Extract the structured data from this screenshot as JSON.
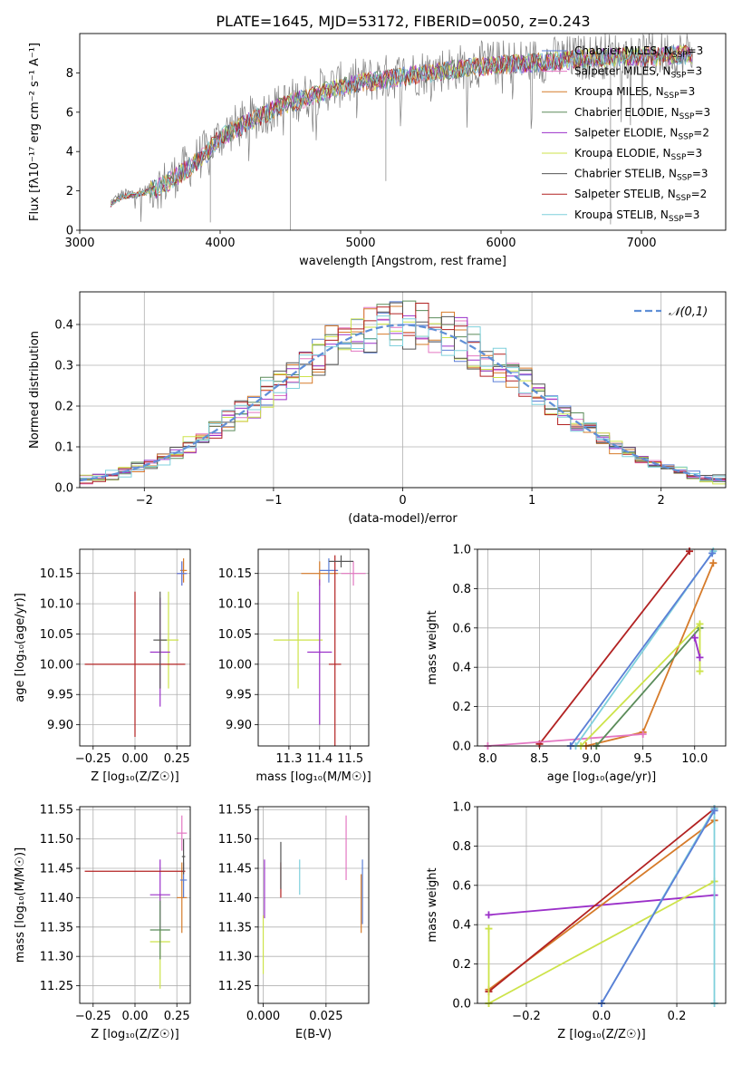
{
  "figure": {
    "title": "PLATE=1645, MJD=53172, FIBERID=0050, z=0.243",
    "sublabels": {
      "spec_y": "Flux [fλ10⁻¹⁷ erg cm⁻² s⁻¹ A⁻¹]",
      "age_axis": "age  [log₁₀(age/yr)]",
      "mass_axis": "mass [log₁₀(M/M☉)]",
      "z_axis": "Z [log₁₀(Z/Z☉)]"
    }
  },
  "legend_models": [
    {
      "label": "Chabrier MILES, N_SSP=3",
      "color": "#5b7fd6"
    },
    {
      "label": "Salpeter MILES, N_SSP=3",
      "color": "#e377c2"
    },
    {
      "label": "Kroupa MILES, N_SSP=3",
      "color": "#d67b2a"
    },
    {
      "label": "Chabrier ELODIE, N_SSP=3",
      "color": "#5b8c5a"
    },
    {
      "label": "Salpeter ELODIE, N_SSP=2",
      "color": "#9b30c9"
    },
    {
      "label": "Kroupa ELODIE, N_SSP=3",
      "color": "#cde34a"
    },
    {
      "label": "Chabrier STELIB, N_SSP=3",
      "color": "#555555"
    },
    {
      "label": "Salpeter STELIB, N_SSP=2",
      "color": "#b22222"
    },
    {
      "label": "Kroupa STELIB, N_SSP=3",
      "color": "#7fd0dc"
    }
  ],
  "chart_data": [
    {
      "id": "spectrum",
      "type": "line",
      "title": "PLATE=1645, MJD=53172, FIBERID=0050, z=0.243",
      "xlabel": "wavelength [Angstrom, rest frame]",
      "ylabel": "Flux [fλ10⁻¹⁷ erg cm⁻² s⁻¹ A⁻¹]",
      "xlim": [
        3000,
        7600
      ],
      "ylim": [
        0,
        10
      ],
      "xticks": [
        3000,
        4000,
        5000,
        6000,
        7000
      ],
      "yticks": [
        0,
        2,
        4,
        6,
        8
      ],
      "grid": false,
      "legend": "right",
      "data_trend_x": [
        3220,
        3300,
        3400,
        3500,
        3600,
        3700,
        3800,
        3900,
        4000,
        4200,
        4400,
        4600,
        4800,
        5000,
        5200,
        5400,
        5600,
        5800,
        6000,
        6200,
        6400,
        6600,
        6800,
        7000,
        7200,
        7350
      ],
      "data_trend_y": [
        1.4,
        1.8,
        1.9,
        2.1,
        2.4,
        2.9,
        3.4,
        4.0,
        4.8,
        5.6,
        6.3,
        6.8,
        7.3,
        7.6,
        7.8,
        8.0,
        8.2,
        8.4,
        8.5,
        8.6,
        8.7,
        8.8,
        8.9,
        8.9,
        9.0,
        9.0
      ]
    },
    {
      "id": "residuals",
      "type": "line",
      "xlabel": "(data-model)/error",
      "ylabel": "Normed distribution",
      "xlim": [
        -2.5,
        2.5
      ],
      "ylim": [
        0,
        0.48
      ],
      "xticks": [
        -2,
        -1,
        0,
        1,
        2
      ],
      "yticks": [
        0.0,
        0.1,
        0.2,
        0.3,
        0.4
      ],
      "grid": true,
      "legend": "top-right",
      "legend_label": "𝒩(0,1)",
      "gaussian": {
        "mu": 0,
        "sigma": 1
      }
    },
    {
      "id": "age_vs_Z",
      "type": "scatter",
      "xlabel": "Z [log₁₀(Z/Z☉)]",
      "ylabel": "age  [log₁₀(age/yr)]",
      "xlim": [
        -0.33,
        0.33
      ],
      "ylim": [
        9.865,
        10.19
      ],
      "xticks": [
        -0.25,
        0.0,
        0.25
      ],
      "yticks": [
        9.9,
        9.95,
        10.0,
        10.05,
        10.1,
        10.15
      ],
      "grid": true,
      "points": [
        {
          "x": 0.28,
          "y": 10.15,
          "xerr": 0.03,
          "yerr": 0.02,
          "color": "#e377c2"
        },
        {
          "x": 0.29,
          "y": 10.155,
          "xerr": 0.02,
          "yerr": 0.02,
          "color": "#d67b2a"
        },
        {
          "x": 0.28,
          "y": 10.15,
          "xerr": 0.03,
          "yerr": 0.02,
          "color": "#5b7fd6"
        },
        {
          "x": 0.2,
          "y": 10.04,
          "xerr": 0.06,
          "yerr": 0.08,
          "color": "#cde34a"
        },
        {
          "x": 0.15,
          "y": 10.02,
          "xerr": 0.06,
          "yerr": 0.09,
          "color": "#9b30c9"
        },
        {
          "x": 0.0,
          "y": 10.0,
          "xerr": 0.3,
          "yerr": 0.12,
          "color": "#b22222"
        },
        {
          "x": 0.15,
          "y": 10.04,
          "xerr": 0.04,
          "yerr": 0.08,
          "color": "#555555"
        }
      ]
    },
    {
      "id": "age_vs_mass",
      "type": "scatter",
      "xlabel": "mass [log₁₀(M/M☉)]",
      "ylabel": "",
      "xlim": [
        11.2,
        11.56
      ],
      "ylim": [
        9.865,
        10.19
      ],
      "xticks": [
        11.3,
        11.4,
        11.5
      ],
      "yticks": [
        9.9,
        9.95,
        10.0,
        10.05,
        10.1,
        10.15
      ],
      "grid": true,
      "points": [
        {
          "x": 11.51,
          "y": 10.15,
          "xerr": 0.04,
          "yerr": 0.02,
          "color": "#e377c2"
        },
        {
          "x": 11.4,
          "y": 10.15,
          "xerr": 0.06,
          "yerr": 0.02,
          "color": "#d67b2a"
        },
        {
          "x": 11.43,
          "y": 10.155,
          "xerr": 0.03,
          "yerr": 0.02,
          "color": "#5b7fd6"
        },
        {
          "x": 11.33,
          "y": 10.04,
          "xerr": 0.08,
          "yerr": 0.08,
          "color": "#cde34a"
        },
        {
          "x": 11.4,
          "y": 10.02,
          "xerr": 0.04,
          "yerr": 0.12,
          "color": "#9b30c9"
        },
        {
          "x": 11.45,
          "y": 10.0,
          "xerr": 0.02,
          "yerr": 0.18,
          "color": "#b22222"
        },
        {
          "x": 11.47,
          "y": 10.17,
          "xerr": 0.04,
          "yerr": 0.01,
          "color": "#555555"
        }
      ]
    },
    {
      "id": "mw_vs_age",
      "type": "line",
      "xlabel": "age  [log₁₀(age/yr)]",
      "ylabel": "mass weight",
      "xlim": [
        7.9,
        10.3
      ],
      "ylim": [
        0,
        1
      ],
      "xticks": [
        8.0,
        8.5,
        9.0,
        9.5,
        10.0
      ],
      "yticks": [
        0.0,
        0.2,
        0.4,
        0.6,
        0.8,
        1.0
      ],
      "grid": true,
      "series": [
        {
          "color": "#b22222",
          "x": [
            8.5,
            9.95
          ],
          "y": [
            0.01,
            0.99
          ]
        },
        {
          "color": "#d67b2a",
          "x": [
            8.95,
            9.5,
            10.18
          ],
          "y": [
            0.0,
            0.07,
            0.93
          ]
        },
        {
          "color": "#e377c2",
          "x": [
            8.0,
            9.5
          ],
          "y": [
            0.0,
            0.06
          ]
        },
        {
          "color": "#7fd0dc",
          "x": [
            8.85,
            10.18
          ],
          "y": [
            0.0,
            0.99
          ]
        },
        {
          "color": "#5b7fd6",
          "x": [
            8.8,
            10.17
          ],
          "y": [
            0.0,
            0.98
          ]
        },
        {
          "color": "#5b8c5a",
          "x": [
            9.05,
            10.05
          ],
          "y": [
            0.0,
            0.6
          ]
        },
        {
          "color": "#cde34a",
          "x": [
            8.9,
            10.05,
            10.05
          ],
          "y": [
            0.0,
            0.62,
            0.38
          ]
        },
        {
          "color": "#9b30c9",
          "x": [
            10.0,
            10.05
          ],
          "y": [
            0.55,
            0.45
          ]
        }
      ]
    },
    {
      "id": "mass_vs_Z",
      "type": "scatter",
      "xlabel": "Z [log₁₀(Z/Z☉)]",
      "ylabel": "mass [log₁₀(M/M☉)]",
      "xlim": [
        -0.33,
        0.33
      ],
      "ylim": [
        11.22,
        11.555
      ],
      "xticks": [
        -0.25,
        0.0,
        0.25
      ],
      "yticks": [
        11.25,
        11.3,
        11.35,
        11.4,
        11.45,
        11.5,
        11.55
      ],
      "grid": true,
      "points": [
        {
          "x": 0.28,
          "y": 11.51,
          "xerr": 0.03,
          "yerr": 0.03,
          "color": "#e377c2"
        },
        {
          "x": 0.28,
          "y": 11.4,
          "xerr": 0.03,
          "yerr": 0.06,
          "color": "#d67b2a"
        },
        {
          "x": 0.29,
          "y": 11.43,
          "xerr": 0.02,
          "yerr": 0.03,
          "color": "#5b7fd6"
        },
        {
          "x": 0.15,
          "y": 11.325,
          "xerr": 0.06,
          "yerr": 0.08,
          "color": "#cde34a"
        },
        {
          "x": 0.15,
          "y": 11.405,
          "xerr": 0.06,
          "yerr": 0.06,
          "color": "#9b30c9"
        },
        {
          "x": 0.0,
          "y": 11.445,
          "xerr": 0.3,
          "yerr": 0.0,
          "color": "#b22222"
        },
        {
          "x": 0.15,
          "y": 11.345,
          "xerr": 0.06,
          "yerr": 0.05,
          "color": "#5b8c5a"
        },
        {
          "x": 0.29,
          "y": 11.47,
          "xerr": 0.01,
          "yerr": 0.03,
          "color": "#555555"
        }
      ]
    },
    {
      "id": "mass_vs_ebv",
      "type": "scatter",
      "xlabel": "E(B-V)",
      "ylabel": "",
      "xlim": [
        -0.002,
        0.042
      ],
      "ylim": [
        11.22,
        11.555
      ],
      "xticks": [
        0.0,
        0.025
      ],
      "yticks": [
        11.25,
        11.3,
        11.35,
        11.4,
        11.45,
        11.5,
        11.55
      ],
      "grid": true,
      "points": [
        {
          "x": 0.033,
          "y": 11.485,
          "yerr": 0.055,
          "color": "#e377c2"
        },
        {
          "x": 0.039,
          "y": 11.39,
          "yerr": 0.05,
          "color": "#d67b2a"
        },
        {
          "x": 0.0395,
          "y": 11.41,
          "yerr": 0.055,
          "color": "#5b7fd6"
        },
        {
          "x": 0.0,
          "y": 11.32,
          "yerr": 0.05,
          "color": "#cde34a"
        },
        {
          "x": 0.0005,
          "y": 11.415,
          "yerr": 0.05,
          "color": "#9b30c9"
        },
        {
          "x": 0.007,
          "y": 11.43,
          "yerr": 0.03,
          "color": "#b22222"
        },
        {
          "x": 0.007,
          "y": 11.455,
          "yerr": 0.04,
          "color": "#555555"
        },
        {
          "x": 0.0145,
          "y": 11.435,
          "yerr": 0.03,
          "color": "#7fd0dc"
        }
      ]
    },
    {
      "id": "mw_vs_Z",
      "type": "line",
      "xlabel": "Z [log₁₀(Z/Z☉)]",
      "ylabel": "mass weight",
      "xlim": [
        -0.33,
        0.33
      ],
      "ylim": [
        0,
        1
      ],
      "xticks": [
        -0.2,
        0.0,
        0.2
      ],
      "yticks": [
        0.0,
        0.2,
        0.4,
        0.6,
        0.8,
        1.0
      ],
      "grid": true,
      "series": [
        {
          "color": "#9b30c9",
          "x": [
            -0.3,
            0.3
          ],
          "y": [
            0.45,
            0.55
          ]
        },
        {
          "color": "#d67b2a",
          "x": [
            -0.3,
            0.3
          ],
          "y": [
            0.07,
            0.93
          ]
        },
        {
          "color": "#b22222",
          "x": [
            -0.3,
            0.3
          ],
          "y": [
            0.06,
            0.99
          ]
        },
        {
          "color": "#cde34a",
          "x": [
            -0.3,
            0.3
          ],
          "y": [
            0.0,
            0.62
          ]
        },
        {
          "color": "#cde34a",
          "x": [
            -0.3,
            -0.3
          ],
          "y": [
            0.0,
            0.38
          ]
        },
        {
          "color": "#7fd0dc",
          "x": [
            0.0,
            0.3,
            0.3
          ],
          "y": [
            0.0,
            0.99,
            0.0
          ]
        },
        {
          "color": "#5b7fd6",
          "x": [
            0.0,
            0.3
          ],
          "y": [
            0.0,
            0.98
          ]
        }
      ]
    }
  ]
}
